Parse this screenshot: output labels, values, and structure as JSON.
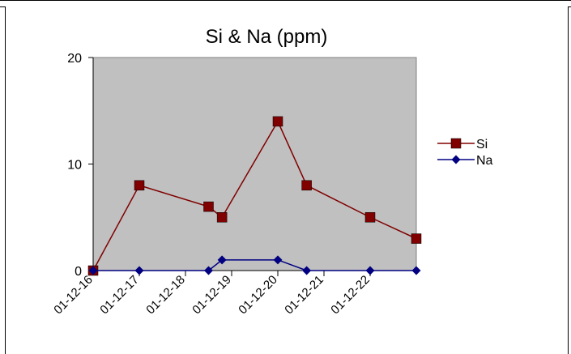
{
  "chart_data": {
    "type": "line",
    "title": "Si & Na (ppm)",
    "xlabel": "",
    "ylabel": "",
    "x_tick_labels": [
      "01-12-16",
      "01-12-17",
      "01-12-18",
      "01-12-19",
      "01-12-20",
      "01-12-21",
      "01-12-22"
    ],
    "xlim": [
      "01-12-16",
      "01-12-23"
    ],
    "ylim": [
      0,
      20
    ],
    "y_ticks": [
      0,
      10,
      20
    ],
    "grid": false,
    "plot_background": "#c0c0c0",
    "legend_position": "right",
    "series": [
      {
        "name": "Si",
        "color": "#800000",
        "marker": "square",
        "x": [
          "01-12-16",
          "01-12-17",
          "01-12-18 12:00",
          "01-12-18 19:00",
          "01-12-20",
          "01-12-20 15:00",
          "01-12-22",
          "01-12-23"
        ],
        "values": [
          0,
          8,
          6,
          5,
          14,
          8,
          5,
          3
        ]
      },
      {
        "name": "Na",
        "color": "#000080",
        "marker": "diamond",
        "x": [
          "01-12-16",
          "01-12-17",
          "01-12-18 12:00",
          "01-12-18 19:00",
          "01-12-20",
          "01-12-20 15:00",
          "01-12-22",
          "01-12-23"
        ],
        "values": [
          0,
          0,
          0,
          1,
          1,
          0,
          0,
          0
        ]
      }
    ]
  }
}
